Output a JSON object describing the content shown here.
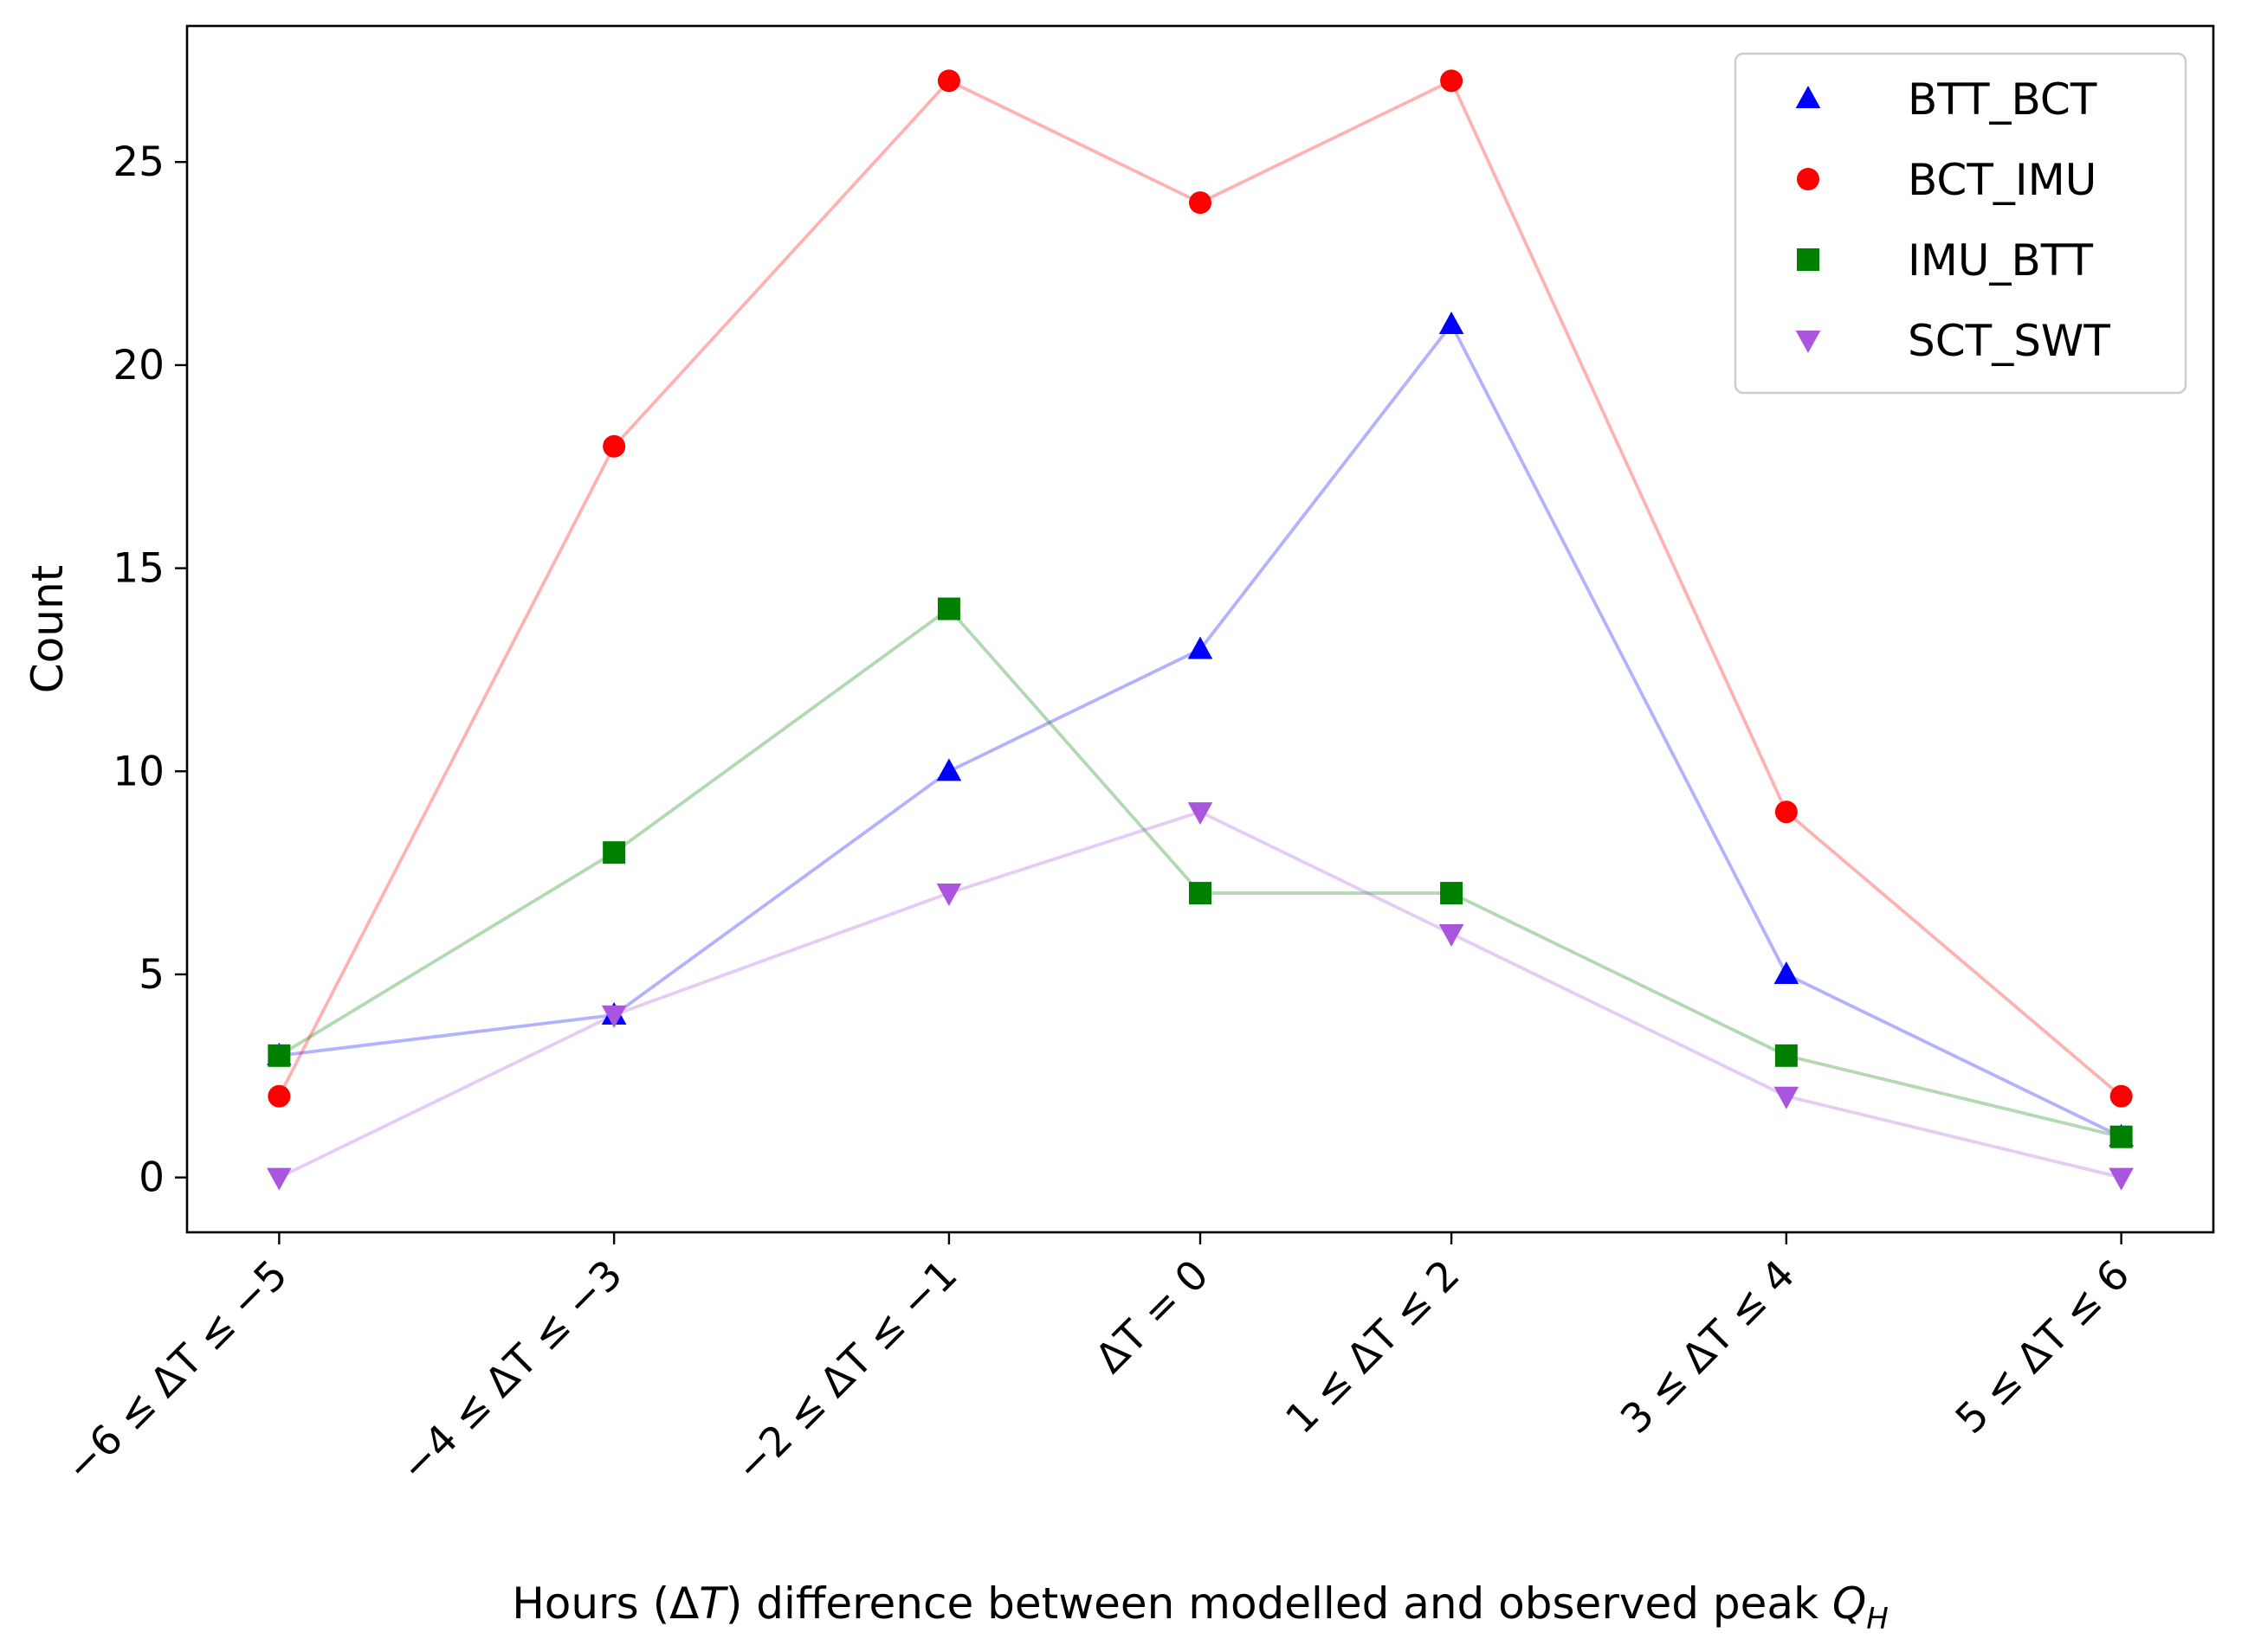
{
  "chart_data": {
    "type": "line",
    "categories": [
      "−6 ≤ ΔT ≤ −5",
      "−4 ≤ ΔT ≤ −3",
      "−2 ≤ ΔT ≤ −1",
      "ΔT = 0",
      "1 ≤ ΔT ≤ 2",
      "3 ≤ ΔT ≤ 4",
      "5 ≤ ΔT ≤ 6"
    ],
    "x": [
      -5.5,
      -3.5,
      -1.5,
      0,
      1.5,
      3.5,
      5.5
    ],
    "series": [
      {
        "name": "BTT_BCT",
        "marker": "triangle-up",
        "color": "#0000ff",
        "values": [
          3,
          4,
          10,
          13,
          21,
          5,
          1
        ]
      },
      {
        "name": "BCT_IMU",
        "marker": "circle",
        "color": "#ff0000",
        "values": [
          2,
          18,
          27,
          24,
          27,
          9,
          2
        ]
      },
      {
        "name": "IMU_BTT",
        "marker": "square",
        "color": "#008000",
        "values": [
          3,
          8,
          14,
          7,
          7,
          3,
          1
        ]
      },
      {
        "name": "SCT_SWT",
        "marker": "triangle-down",
        "color": "#aa55dd",
        "values": [
          0,
          4,
          7,
          9,
          6,
          2,
          0
        ]
      }
    ],
    "xlabel": "Hours (ΔT) difference between modelled and observed peak Q_H",
    "ylabel": "Count",
    "yticks": [
      0,
      5,
      10,
      15,
      20,
      25
    ],
    "ylim": [
      -1.35,
      28.35
    ],
    "xlim": [
      -6.05,
      6.05
    ],
    "grid": false,
    "legend_position": "top-right"
  }
}
